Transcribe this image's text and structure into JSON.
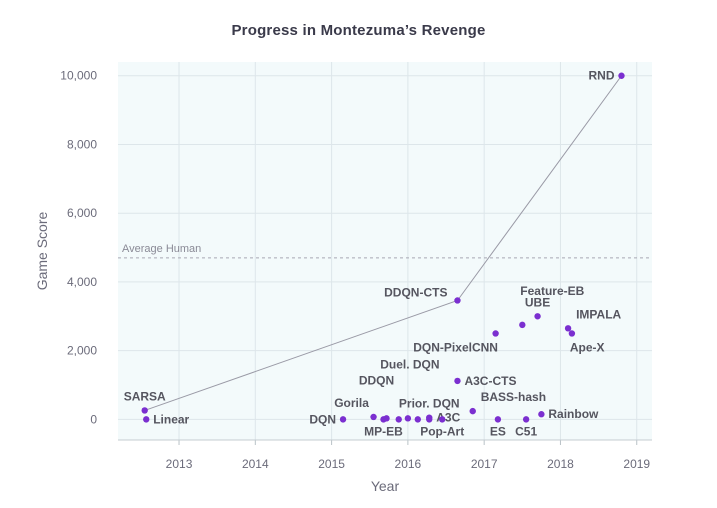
{
  "chart_data": {
    "type": "scatter",
    "title": "Progress in Montezuma’s Revenge",
    "xlabel": "Year",
    "ylabel": "Game Score",
    "xlim": [
      2012.2,
      2019.2
    ],
    "ylim": [
      -600,
      10400
    ],
    "x_ticks": [
      "2013",
      "2014",
      "2015",
      "2016",
      "2017",
      "2018",
      "2019"
    ],
    "y_ticks": [
      "0",
      "2,000",
      "4,000",
      "6,000",
      "8,000",
      "10,000"
    ],
    "grid": true,
    "colors": {
      "point": "#7b2fd0",
      "plot_background": "#f3fafb",
      "grid": "#dde6ea",
      "line": "#9a9aa6",
      "reference": "#a8a8b2"
    },
    "reference_line": {
      "label": "Average Human",
      "y": 4700
    },
    "frontier": [
      {
        "x": 2012.55,
        "y": 260
      },
      {
        "x": 2016.65,
        "y": 3460
      },
      {
        "x": 2018.8,
        "y": 10000
      }
    ],
    "points": [
      {
        "label": "SARSA",
        "x": 2012.55,
        "y": 260,
        "anchor": "above"
      },
      {
        "label": "Linear",
        "x": 2012.57,
        "y": 0,
        "anchor": "right"
      },
      {
        "label": "DQN",
        "x": 2015.15,
        "y": 0,
        "anchor": "left"
      },
      {
        "label": "Gorila",
        "x": 2015.55,
        "y": 70,
        "anchor": "above-left"
      },
      {
        "label": "MP-EB",
        "x": 2015.68,
        "y": 0,
        "anchor": "below"
      },
      {
        "label": "DDQN",
        "x": 2015.72,
        "y": 30,
        "anchor": "above-high"
      },
      {
        "label": "",
        "x": 2015.88,
        "y": 0,
        "anchor": "none"
      },
      {
        "label": "Duel. DQN",
        "x": 2016.0,
        "y": 30,
        "anchor": "above-higher"
      },
      {
        "label": "",
        "x": 2016.13,
        "y": 0,
        "anchor": "none"
      },
      {
        "label": "Prior. DQN",
        "x": 2016.28,
        "y": 50,
        "anchor": "above"
      },
      {
        "label": "A3C",
        "x": 2016.28,
        "y": 0,
        "anchor": "right-low"
      },
      {
        "label": "Pop-Art",
        "x": 2016.45,
        "y": 0,
        "anchor": "below"
      },
      {
        "label": "A3C-CTS",
        "x": 2016.65,
        "y": 1120,
        "anchor": "right"
      },
      {
        "label": "DDQN-CTS",
        "x": 2016.65,
        "y": 3460,
        "anchor": "left-above"
      },
      {
        "label": "BASS-hash",
        "x": 2016.85,
        "y": 240,
        "anchor": "above-right"
      },
      {
        "label": "ES",
        "x": 2017.18,
        "y": 0,
        "anchor": "below"
      },
      {
        "label": "DQN-PixelCNN",
        "x": 2017.15,
        "y": 2500,
        "anchor": "below-left"
      },
      {
        "label": "Feature-EB",
        "x": 2017.5,
        "y": 2750,
        "anchor": "above-far"
      },
      {
        "label": "C51",
        "x": 2017.55,
        "y": 0,
        "anchor": "below"
      },
      {
        "label": "UBE",
        "x": 2017.7,
        "y": 3000,
        "anchor": "above"
      },
      {
        "label": "Rainbow",
        "x": 2017.75,
        "y": 150,
        "anchor": "right"
      },
      {
        "label": "IMPALA",
        "x": 2018.1,
        "y": 2650,
        "anchor": "above-right"
      },
      {
        "label": "Ape-X",
        "x": 2018.15,
        "y": 2500,
        "anchor": "below-right"
      },
      {
        "label": "RND",
        "x": 2018.8,
        "y": 10000,
        "anchor": "left"
      }
    ]
  }
}
